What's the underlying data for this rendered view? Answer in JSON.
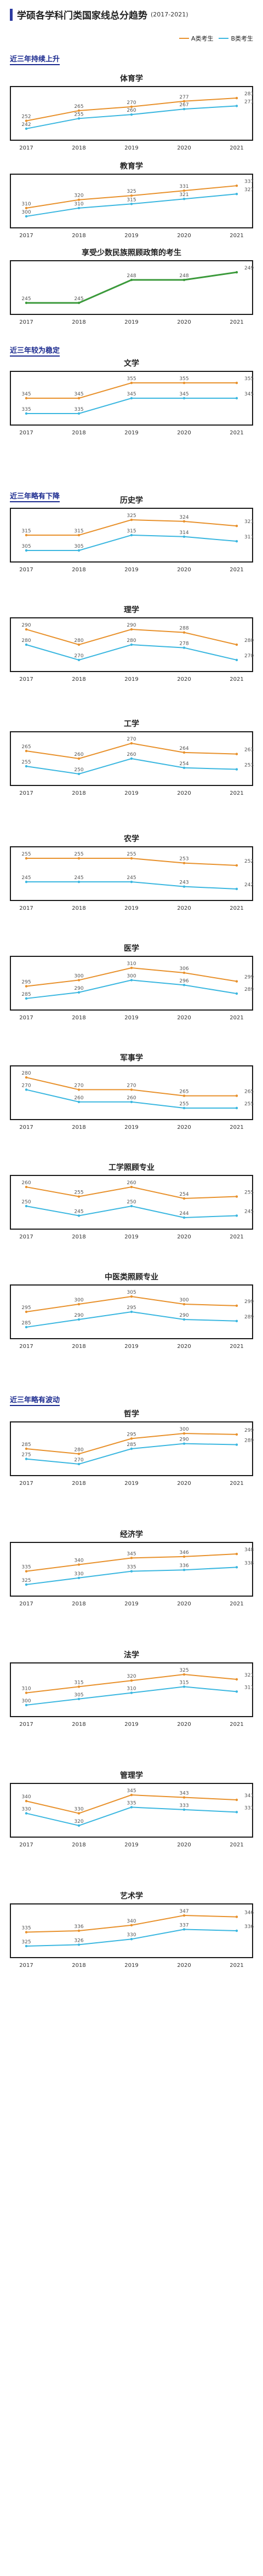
{
  "header": {
    "title": "学硕各学科门类国家线总分趋势",
    "years": "(2017-2021)"
  },
  "legend": {
    "a_label": "A类考生",
    "b_label": "B类考生"
  },
  "colors": {
    "a": "#e8912c",
    "b": "#3bb7e0",
    "green": "#3b9a3b",
    "frame": "#1a1a1a",
    "accent": "#1b2a8f"
  },
  "sections": [
    {
      "title": "近三年持续上升"
    },
    {
      "title": "近三年较为稳定"
    },
    {
      "title": "近三年略有下降"
    },
    {
      "title": "近三年略有波动"
    }
  ],
  "chart_data": [
    {
      "type": "line",
      "title": "体育学",
      "x": [
        "2017",
        "2018",
        "2019",
        "2020",
        "2021"
      ],
      "series": [
        {
          "name": "A类考生",
          "values": [
            252,
            265,
            270,
            277,
            281
          ]
        },
        {
          "name": "B类考生",
          "values": [
            242,
            255,
            260,
            267,
            271
          ]
        }
      ]
    },
    {
      "type": "line",
      "title": "教育学",
      "x": [
        "2017",
        "2018",
        "2019",
        "2020",
        "2021"
      ],
      "series": [
        {
          "name": "A类考生",
          "values": [
            310,
            320,
            325,
            331,
            337
          ]
        },
        {
          "name": "B类考生",
          "values": [
            300,
            310,
            315,
            321,
            327
          ]
        }
      ]
    },
    {
      "type": "line",
      "title": "享受少数民族照顾政策的考生",
      "x": [
        "2017",
        "2018",
        "2019",
        "2020",
        "2021"
      ],
      "series": [
        {
          "name": "",
          "values": [
            245,
            245,
            248,
            248,
            249
          ]
        }
      ]
    },
    {
      "type": "line",
      "title": "文学",
      "x": [
        "2017",
        "2018",
        "2019",
        "2020",
        "2021"
      ],
      "series": [
        {
          "name": "A类考生",
          "values": [
            345,
            345,
            355,
            355,
            355
          ]
        },
        {
          "name": "B类考生",
          "values": [
            335,
            335,
            345,
            345,
            345
          ]
        }
      ]
    },
    {
      "type": "line",
      "title": "历史学",
      "x": [
        "2017",
        "2018",
        "2019",
        "2020",
        "2021"
      ],
      "series": [
        {
          "name": "A类考生",
          "values": [
            315,
            315,
            325,
            324,
            321
          ]
        },
        {
          "name": "B类考生",
          "values": [
            305,
            305,
            315,
            314,
            311
          ]
        }
      ]
    },
    {
      "type": "line",
      "title": "理学",
      "x": [
        "2017",
        "2018",
        "2019",
        "2020",
        "2021"
      ],
      "series": [
        {
          "name": "A类考生",
          "values": [
            290,
            280,
            290,
            288,
            280
          ]
        },
        {
          "name": "B类考生",
          "values": [
            280,
            270,
            280,
            278,
            270
          ]
        }
      ]
    },
    {
      "type": "line",
      "title": "工学",
      "x": [
        "2017",
        "2018",
        "2019",
        "2020",
        "2021"
      ],
      "series": [
        {
          "name": "A类考生",
          "values": [
            265,
            260,
            270,
            264,
            263
          ]
        },
        {
          "name": "B类考生",
          "values": [
            255,
            250,
            260,
            254,
            253
          ]
        }
      ]
    },
    {
      "type": "line",
      "title": "农学",
      "x": [
        "2017",
        "2018",
        "2019",
        "2020",
        "2021"
      ],
      "series": [
        {
          "name": "A类考生",
          "values": [
            255,
            255,
            255,
            253,
            252
          ]
        },
        {
          "name": "B类考生",
          "values": [
            245,
            245,
            245,
            243,
            242
          ]
        }
      ]
    },
    {
      "type": "line",
      "title": "医学",
      "x": [
        "2017",
        "2018",
        "2019",
        "2020",
        "2021"
      ],
      "series": [
        {
          "name": "A类考生",
          "values": [
            295,
            300,
            310,
            306,
            299
          ]
        },
        {
          "name": "B类考生",
          "values": [
            285,
            290,
            300,
            296,
            289
          ]
        }
      ]
    },
    {
      "type": "line",
      "title": "军事学",
      "x": [
        "2017",
        "2018",
        "2019",
        "2020",
        "2021"
      ],
      "series": [
        {
          "name": "A类考生",
          "values": [
            280,
            270,
            270,
            265,
            265
          ]
        },
        {
          "name": "B类考生",
          "values": [
            270,
            260,
            260,
            255,
            255
          ]
        }
      ]
    },
    {
      "type": "line",
      "title": "工学照顾专业",
      "x": [
        "2017",
        "2018",
        "2019",
        "2020",
        "2021"
      ],
      "series": [
        {
          "name": "A类考生",
          "values": [
            260,
            255,
            260,
            254,
            255
          ]
        },
        {
          "name": "B类考生",
          "values": [
            250,
            245,
            250,
            244,
            245
          ]
        }
      ]
    },
    {
      "type": "line",
      "title": "中医类照顾专业",
      "x": [
        "2017",
        "2018",
        "2019",
        "2020",
        "2021"
      ],
      "series": [
        {
          "name": "A类考生",
          "values": [
            295,
            300,
            305,
            300,
            299
          ]
        },
        {
          "name": "B类考生",
          "values": [
            285,
            290,
            295,
            290,
            289
          ]
        }
      ]
    },
    {
      "type": "line",
      "title": "哲学",
      "x": [
        "2017",
        "2018",
        "2019",
        "2020",
        "2021"
      ],
      "series": [
        {
          "name": "A类考生",
          "values": [
            285,
            280,
            295,
            300,
            299
          ]
        },
        {
          "name": "B类考生",
          "values": [
            275,
            270,
            285,
            290,
            289
          ]
        }
      ]
    },
    {
      "type": "line",
      "title": "经济学",
      "x": [
        "2017",
        "2018",
        "2019",
        "2020",
        "2021"
      ],
      "series": [
        {
          "name": "A类考生",
          "values": [
            335,
            340,
            345,
            346,
            348
          ]
        },
        {
          "name": "B类考生",
          "values": [
            325,
            330,
            335,
            336,
            338
          ]
        }
      ]
    },
    {
      "type": "line",
      "title": "法学",
      "x": [
        "2017",
        "2018",
        "2019",
        "2020",
        "2021"
      ],
      "series": [
        {
          "name": "A类考生",
          "values": [
            310,
            315,
            320,
            325,
            321
          ]
        },
        {
          "name": "B类考生",
          "values": [
            300,
            305,
            310,
            315,
            311
          ]
        }
      ]
    },
    {
      "type": "line",
      "title": "管理学",
      "x": [
        "2017",
        "2018",
        "2019",
        "2020",
        "2021"
      ],
      "series": [
        {
          "name": "A类考生",
          "values": [
            340,
            330,
            345,
            343,
            341
          ]
        },
        {
          "name": "B类考生",
          "values": [
            330,
            320,
            335,
            333,
            331
          ]
        }
      ]
    },
    {
      "type": "line",
      "title": "艺术学",
      "x": [
        "2017",
        "2018",
        "2019",
        "2020",
        "2021"
      ],
      "series": [
        {
          "name": "A类考生",
          "values": [
            335,
            336,
            340,
            347,
            346
          ]
        },
        {
          "name": "B类考生",
          "values": [
            325,
            326,
            330,
            337,
            336
          ]
        }
      ]
    }
  ]
}
